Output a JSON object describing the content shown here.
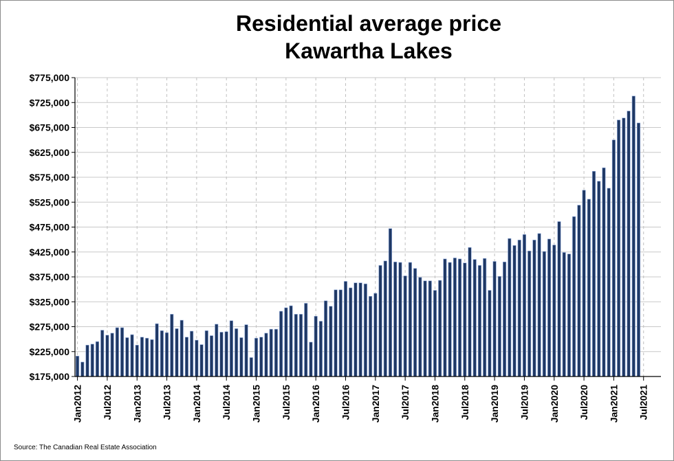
{
  "chart_data": {
    "type": "bar",
    "title": "Residential average price",
    "subtitle": "Kawartha Lakes",
    "source": "Source: The Canadian Real Estate Association",
    "xlabel": "",
    "ylabel": "",
    "ylim": [
      175000,
      775000
    ],
    "y_ticks": [
      "$175,000",
      "$225,000",
      "$275,000",
      "$325,000",
      "$375,000",
      "$425,000",
      "$475,000",
      "$525,000",
      "$575,000",
      "$625,000",
      "$675,000",
      "$725,000",
      "$775,000"
    ],
    "x_tick_labels": [
      "Jan2012",
      "Jul2012",
      "Jan2013",
      "Jul2013",
      "Jan2014",
      "Jul2014",
      "Jan2015",
      "Jul2015",
      "Jan2016",
      "Jul2016",
      "Jan2017",
      "Jul2017",
      "Jan2018",
      "Jul2018",
      "Jan2019",
      "Jul2019",
      "Jan2020",
      "Jul2020",
      "Jan2021",
      "Jul2021"
    ],
    "grid": true,
    "bar_color": "#1f3864",
    "bar_edge_color": "#8ea9db",
    "series": [
      {
        "x_start": "Jan2012",
        "values": [
          216000,
          204000,
          238000,
          240000,
          245000,
          268000,
          258000,
          262000,
          273000,
          273000,
          253000,
          259000,
          238000,
          254000,
          252000,
          249000,
          281000,
          267000,
          263000,
          300000,
          271000,
          288000,
          254000,
          266000,
          248000,
          239000,
          267000,
          257000,
          280000,
          264000,
          265000,
          287000,
          271000,
          253000,
          279000,
          213000,
          252000,
          254000,
          262000,
          270000,
          270000,
          306000,
          313000,
          317000,
          300000,
          300000,
          322000,
          244000,
          296000,
          286000,
          327000,
          316000,
          349000,
          349000,
          366000,
          353000,
          363000,
          363000,
          361000,
          336000,
          342000,
          398000,
          407000,
          472000,
          405000,
          404000,
          377000,
          404000,
          392000,
          374000,
          367000,
          367000,
          348000,
          368000,
          411000,
          404000,
          413000,
          411000,
          403000,
          434000,
          410000,
          398000,
          412000,
          348000,
          406000,
          376000,
          405000,
          452000,
          438000,
          449000,
          460000,
          427000,
          449000,
          462000,
          426000,
          451000,
          439000,
          486000,
          424000,
          421000,
          496000,
          519000,
          549000,
          531000,
          587000,
          567000,
          594000,
          553000,
          650000,
          690000,
          694000,
          708000,
          738000,
          684000
        ]
      }
    ]
  }
}
